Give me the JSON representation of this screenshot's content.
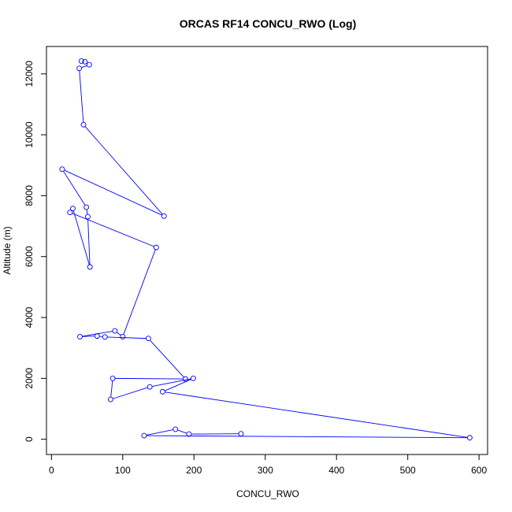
{
  "chart_data": {
    "type": "line",
    "title": "ORCAS RF14 CONCU_RWO (Log)",
    "xlabel": "CONCU_RWO",
    "ylabel": "Altitude (m)",
    "xlim": [
      -7,
      612
    ],
    "ylim": [
      -500,
      12900
    ],
    "xticks": [
      0,
      100,
      200,
      300,
      400,
      500,
      600
    ],
    "yticks": [
      0,
      2000,
      4000,
      6000,
      8000,
      10000,
      12000
    ],
    "grid": false,
    "legend": "none",
    "color": "#0000ff",
    "series": [
      {
        "markers": "open-circle",
        "x": [
          42,
          47,
          53,
          39,
          45,
          158,
          15,
          49,
          51,
          54,
          30,
          26,
          147,
          100,
          89,
          40,
          64,
          75,
          136,
          188,
          86,
          83,
          138,
          199,
          156,
          587,
          130,
          174,
          193,
          266
        ],
        "y": [
          12420,
          12400,
          12300,
          12180,
          10330,
          7330,
          8870,
          7620,
          7310,
          5660,
          7580,
          7450,
          6300,
          3370,
          3560,
          3370,
          3390,
          3360,
          3310,
          1980,
          2000,
          1310,
          1720,
          2000,
          1560,
          50,
          120,
          330,
          170,
          180
        ]
      }
    ]
  }
}
